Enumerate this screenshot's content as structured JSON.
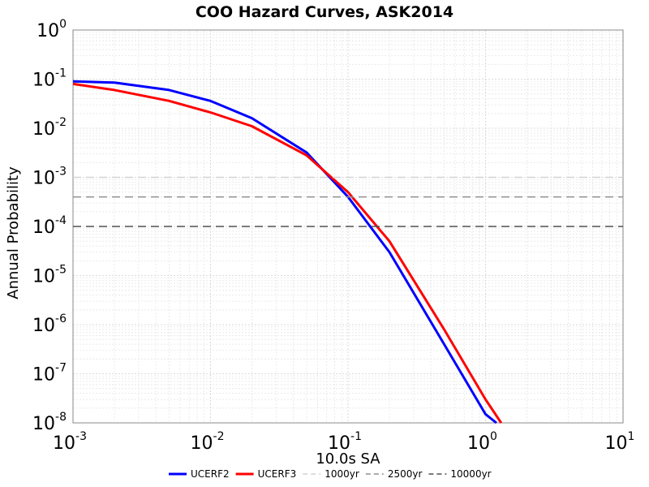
{
  "chart_data": {
    "type": "line",
    "title": "COO Hazard Curves, ASK2014",
    "xlabel": "10.0s SA",
    "ylabel": "Annual Probability",
    "x_scale": "log",
    "y_scale": "log",
    "xlim": [
      0.001,
      10
    ],
    "ylim": [
      1e-08,
      1
    ],
    "grid": true,
    "legend_position": "bottom",
    "x_ticks": [
      {
        "base": "10",
        "exp": "-3",
        "value": 0.001
      },
      {
        "base": "10",
        "exp": "-2",
        "value": 0.01
      },
      {
        "base": "10",
        "exp": "-1",
        "value": 0.1
      },
      {
        "base": "10",
        "exp": "0",
        "value": 1
      },
      {
        "base": "10",
        "exp": "1",
        "value": 10
      }
    ],
    "y_ticks": [
      {
        "base": "10",
        "exp": "0",
        "value": 1
      },
      {
        "base": "10",
        "exp": "-1",
        "value": 0.1
      },
      {
        "base": "10",
        "exp": "-2",
        "value": 0.01
      },
      {
        "base": "10",
        "exp": "-3",
        "value": 0.001
      },
      {
        "base": "10",
        "exp": "-4",
        "value": 0.0001
      },
      {
        "base": "10",
        "exp": "-5",
        "value": 1e-05
      },
      {
        "base": "10",
        "exp": "-6",
        "value": 1e-06
      },
      {
        "base": "10",
        "exp": "-7",
        "value": 1e-07
      },
      {
        "base": "10",
        "exp": "-8",
        "value": 1e-08
      }
    ],
    "series": [
      {
        "name": "UCERF2",
        "color": "#0000ff",
        "x": [
          0.001,
          0.002,
          0.005,
          0.01,
          0.02,
          0.05,
          0.1,
          0.2,
          0.5,
          1,
          1.2
        ],
        "y": [
          0.09,
          0.085,
          0.06,
          0.036,
          0.016,
          0.0032,
          0.0004,
          3e-05,
          4e-07,
          1.5e-08,
          1e-08
        ]
      },
      {
        "name": "UCERF3",
        "color": "#ff0000",
        "x": [
          0.001,
          0.002,
          0.005,
          0.01,
          0.02,
          0.05,
          0.1,
          0.2,
          0.5,
          1,
          1.3
        ],
        "y": [
          0.08,
          0.06,
          0.036,
          0.021,
          0.011,
          0.0028,
          0.0005,
          5e-05,
          8e-07,
          3e-08,
          1e-08
        ]
      },
      {
        "name": "1000yr",
        "color": "#d3d3d3",
        "dashed": true,
        "x": [
          0.001,
          10
        ],
        "y": [
          0.001,
          0.001
        ]
      },
      {
        "name": "2500yr",
        "color": "#909090",
        "dashed": true,
        "x": [
          0.001,
          10
        ],
        "y": [
          0.0004,
          0.0004
        ]
      },
      {
        "name": "10000yr",
        "color": "#505050",
        "dashed": true,
        "x": [
          0.001,
          10
        ],
        "y": [
          0.0001,
          0.0001
        ]
      }
    ]
  }
}
